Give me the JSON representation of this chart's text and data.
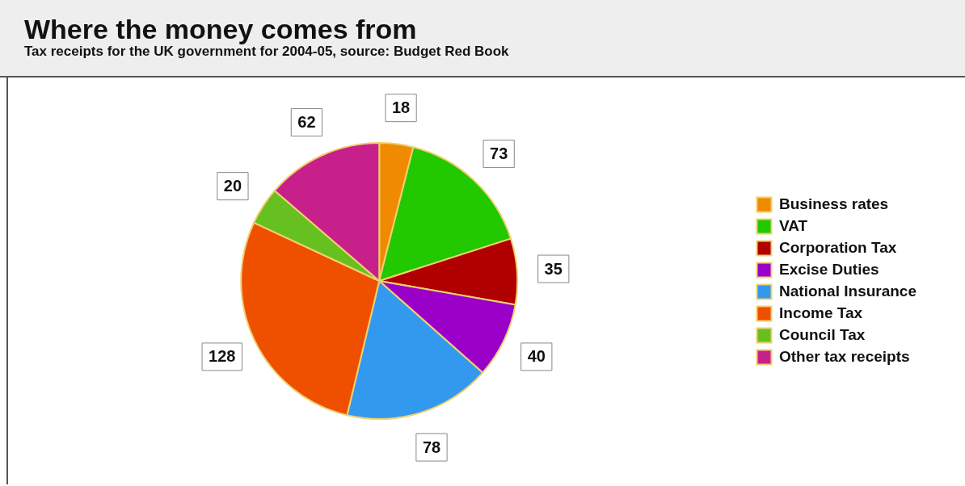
{
  "chart_data": {
    "type": "pie",
    "title": "Where the money comes from",
    "subtitle": "Tax receipts for the UK government for 2004-05, source: Budget Red Book",
    "categories": [
      "Business rates",
      "VAT",
      "Corporation Tax",
      "Excise Duties",
      "National Insurance",
      "Income Tax",
      "Council Tax",
      "Other tax receipts"
    ],
    "values": [
      18,
      73,
      35,
      40,
      78,
      128,
      20,
      62
    ],
    "colors": [
      "#f08a00",
      "#22c800",
      "#b00000",
      "#9a00c8",
      "#3399ee",
      "#ee5000",
      "#66c020",
      "#c8208a"
    ],
    "data_labels": true,
    "legend": "right"
  }
}
